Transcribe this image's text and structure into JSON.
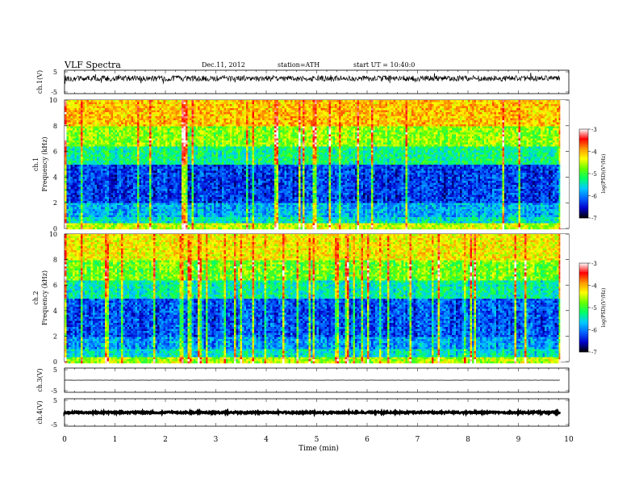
{
  "header": {
    "title": "VLF Spectra",
    "date": "Dec.11, 2012",
    "station": "station=ATH",
    "start": "start UT = 10:40:0"
  },
  "chart_data": [
    {
      "type": "line",
      "panel": "ch1-waveform",
      "ylabel": "ch.1(V)",
      "ylim": [
        -5,
        5
      ],
      "yticks": [
        "5",
        "-5"
      ],
      "xlim": [
        0,
        10
      ],
      "description_note": "",
      "baseline": 1.5,
      "noise_amplitude": 1.2
    },
    {
      "type": "heatmap",
      "panel": "ch1-spectrogram",
      "ylabel": [
        "ch.1",
        "Frequency (kHz)"
      ],
      "ylim": [
        0,
        10
      ],
      "yticks": [
        "0",
        "2",
        "4",
        "6",
        "8",
        "10"
      ],
      "xlim": [
        0,
        9.83
      ],
      "colorbar": {
        "label": "log(PSD)(V²/Hz)",
        "range": [
          -7,
          -3
        ],
        "ticks": [
          "-3",
          "-4",
          "-5",
          "-6",
          "-7"
        ]
      },
      "rows": [
        {
          "f_low": 0.0,
          "f_high": 0.5,
          "log_psd": -4.5
        },
        {
          "f_low": 0.5,
          "f_high": 1.0,
          "log_psd": -5.5
        },
        {
          "f_low": 1.0,
          "f_high": 2.0,
          "log_psd": -5.8
        },
        {
          "f_low": 2.0,
          "f_high": 5.0,
          "log_psd": -6.3
        },
        {
          "f_low": 5.0,
          "f_high": 6.5,
          "log_psd": -5.3
        },
        {
          "f_low": 6.5,
          "f_high": 8.0,
          "log_psd": -4.7
        },
        {
          "f_low": 8.0,
          "f_high": 10.0,
          "log_psd": -4.1
        }
      ]
    },
    {
      "type": "heatmap",
      "panel": "ch2-spectrogram",
      "ylabel": [
        "ch.2",
        "Frequency (kHz)"
      ],
      "ylim": [
        0,
        10
      ],
      "yticks": [
        "0",
        "2",
        "4",
        "6",
        "8",
        "10"
      ],
      "xlim": [
        0,
        9.83
      ],
      "colorbar": {
        "label": "log(PSD)(V²/Hz)",
        "range": [
          -7,
          -3
        ],
        "ticks": [
          "-3",
          "-4",
          "-5",
          "-6",
          "-7"
        ]
      },
      "rows": [
        {
          "f_low": 0.0,
          "f_high": 0.5,
          "log_psd": -4.6
        },
        {
          "f_low": 0.5,
          "f_high": 1.0,
          "log_psd": -5.5
        },
        {
          "f_low": 1.0,
          "f_high": 2.0,
          "log_psd": -5.9
        },
        {
          "f_low": 2.0,
          "f_high": 5.0,
          "log_psd": -6.2
        },
        {
          "f_low": 5.0,
          "f_high": 6.5,
          "log_psd": -5.4
        },
        {
          "f_low": 6.5,
          "f_high": 8.0,
          "log_psd": -4.8
        },
        {
          "f_low": 8.0,
          "f_high": 10.0,
          "log_psd": -4.3
        }
      ]
    },
    {
      "type": "line",
      "panel": "ch3-waveform",
      "ylabel": "ch.3(V)",
      "ylim": [
        -5,
        5
      ],
      "yticks": [
        "5",
        "-5"
      ],
      "xlim": [
        0,
        10
      ],
      "baseline": 0,
      "noise_amplitude": 0.05
    },
    {
      "type": "line",
      "panel": "ch4-waveform",
      "ylabel": "ch.4(V)",
      "ylim": [
        -5,
        5
      ],
      "yticks": [
        "5",
        "-5"
      ],
      "xlim": [
        0,
        10
      ],
      "baseline": 0,
      "noise_amplitude": 0.3
    }
  ],
  "xaxis": {
    "label": "Time (min)",
    "ticks": [
      "0",
      "1",
      "2",
      "3",
      "4",
      "5",
      "6",
      "7",
      "8",
      "9",
      "10"
    ]
  },
  "colors": {
    "scale": [
      "#000000",
      "#0000cc",
      "#0066ff",
      "#00ccff",
      "#00ff66",
      "#66ff00",
      "#ffff00",
      "#ff9900",
      "#ff0000",
      "#ffffff"
    ]
  }
}
